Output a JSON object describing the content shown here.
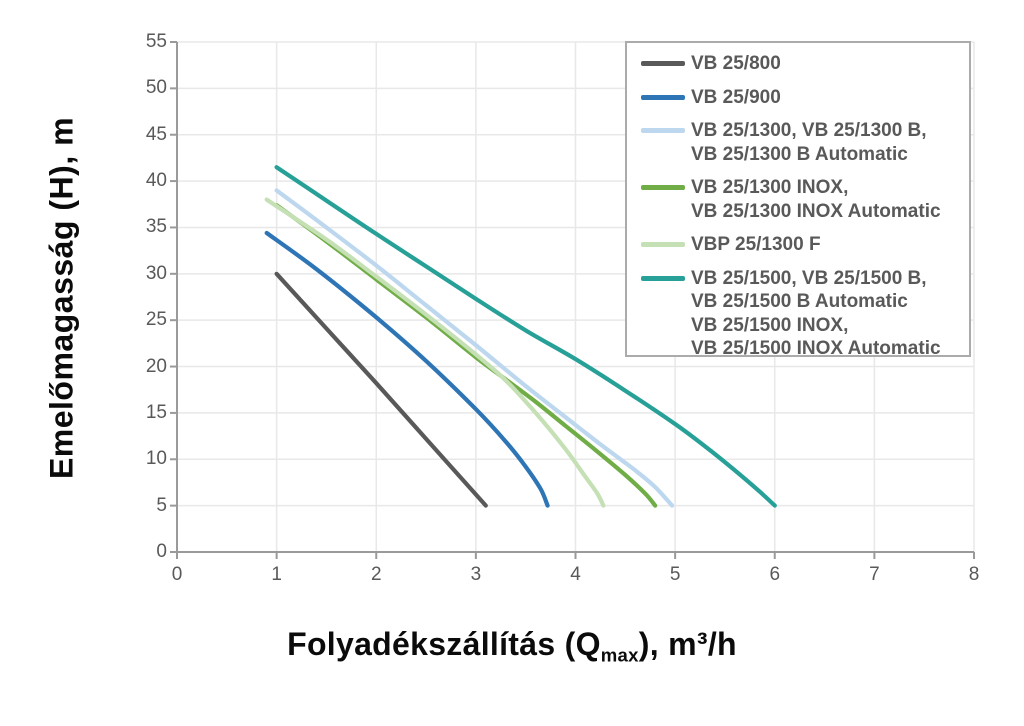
{
  "y_axis": {
    "title": "Emelőmagasság (H), m",
    "min": 0,
    "max": 55,
    "step": 5,
    "ticks": [
      0,
      5,
      10,
      15,
      20,
      25,
      30,
      35,
      40,
      45,
      50,
      55
    ]
  },
  "x_axis": {
    "title_prefix": "Folyadékszállítás (Q",
    "title_sub": "max",
    "title_suffix": "), m³/h",
    "min": 0,
    "max": 8,
    "step": 1,
    "ticks": [
      0,
      1,
      2,
      3,
      4,
      5,
      6,
      7,
      8
    ]
  },
  "legend": {
    "position": "top-right",
    "items": [
      {
        "color": "#595959",
        "lines": [
          "VB 25/800"
        ]
      },
      {
        "color": "#2E75B6",
        "lines": [
          "VB 25/900"
        ]
      },
      {
        "color": "#BDD7EE",
        "lines": [
          "VB 25/1300, VB 25/1300 B,",
          "VB 25/1300 B Automatic"
        ]
      },
      {
        "color": "#70AD47",
        "lines": [
          "VB 25/1300 INOX,",
          "VB 25/1300 INOX Automatic"
        ]
      },
      {
        "color": "#C5E0B4",
        "lines": [
          "VBP 25/1300 F"
        ]
      },
      {
        "color": "#27A098",
        "lines": [
          "VB 25/1500, VB 25/1500 B,",
          "VB 25/1500 B Automatic",
          "VB 25/1500 INOX,",
          "VB 25/1500 INOX Automatic"
        ]
      }
    ]
  },
  "chart_data": {
    "type": "line",
    "title": "",
    "xlabel": "Folyadékszállítás (Qmax), m³/h",
    "ylabel": "Emelőmagasság (H), m",
    "xlim": [
      0,
      8
    ],
    "ylim": [
      0,
      55
    ],
    "grid": true,
    "legend_position": "top-right",
    "axis_color": "#9a9a9a",
    "gridline_color": "#e8e8e8",
    "series": [
      {
        "name": "VB 25/800",
        "color": "#595959",
        "points": [
          [
            1.0,
            30
          ],
          [
            1.5,
            24.1
          ],
          [
            2.0,
            18.2
          ],
          [
            2.5,
            12.2
          ],
          [
            3.0,
            6.2
          ],
          [
            3.1,
            5
          ]
        ]
      },
      {
        "name": "VB 25/900",
        "color": "#2E75B6",
        "points": [
          [
            0.9,
            34.4
          ],
          [
            1.4,
            30.5
          ],
          [
            2.0,
            25.3
          ],
          [
            2.5,
            20.6
          ],
          [
            3.0,
            15.4
          ],
          [
            3.3,
            11.9
          ],
          [
            3.5,
            9.2
          ],
          [
            3.65,
            6.8
          ],
          [
            3.72,
            5
          ]
        ]
      },
      {
        "name": "VB 25/1300, VB 25/1300 B, VB 25/1300 B Automatic",
        "color": "#BDD7EE",
        "points": [
          [
            1.0,
            39
          ],
          [
            1.5,
            35
          ],
          [
            2.0,
            30.9
          ],
          [
            2.5,
            26.6
          ],
          [
            3.0,
            22.3
          ],
          [
            3.5,
            17.9
          ],
          [
            4.0,
            13.7
          ],
          [
            4.3,
            11.2
          ],
          [
            4.6,
            8.8
          ],
          [
            4.8,
            7.0
          ],
          [
            4.97,
            5
          ]
        ]
      },
      {
        "name": "VB 25/1300 INOX, VB 25/1300 INOX Automatic",
        "color": "#70AD47",
        "points": [
          [
            1.0,
            37.4
          ],
          [
            1.5,
            33.5
          ],
          [
            2.0,
            29.4
          ],
          [
            2.5,
            25.3
          ],
          [
            3.0,
            21.0
          ],
          [
            3.3,
            18.6
          ],
          [
            3.6,
            16.2
          ],
          [
            3.9,
            13.6
          ],
          [
            4.2,
            11.0
          ],
          [
            4.5,
            8.3
          ],
          [
            4.7,
            6.3
          ],
          [
            4.8,
            5
          ]
        ]
      },
      {
        "name": "VBP 25/1300 F",
        "color": "#C5E0B4",
        "points": [
          [
            0.9,
            38
          ],
          [
            1.5,
            33.7
          ],
          [
            2.0,
            29.7
          ],
          [
            2.5,
            25.6
          ],
          [
            3.0,
            21.3
          ],
          [
            3.3,
            18.5
          ],
          [
            3.6,
            15.0
          ],
          [
            3.9,
            11.1
          ],
          [
            4.1,
            8.1
          ],
          [
            4.22,
            6.3
          ],
          [
            4.28,
            5
          ]
        ]
      },
      {
        "name": "VB 25/1500, VB 25/1500 B, VB 25/1500 B Automatic, VB 25/1500 INOX, VB 25/1500 INOX Automatic",
        "color": "#27A098",
        "points": [
          [
            1.0,
            41.5
          ],
          [
            1.5,
            37.9
          ],
          [
            2.0,
            34.3
          ],
          [
            2.5,
            30.8
          ],
          [
            3.0,
            27.3
          ],
          [
            3.5,
            23.9
          ],
          [
            4.0,
            20.8
          ],
          [
            4.5,
            17.4
          ],
          [
            5.0,
            13.8
          ],
          [
            5.3,
            11.4
          ],
          [
            5.6,
            8.8
          ],
          [
            5.85,
            6.5
          ],
          [
            6.0,
            5
          ]
        ]
      }
    ]
  }
}
